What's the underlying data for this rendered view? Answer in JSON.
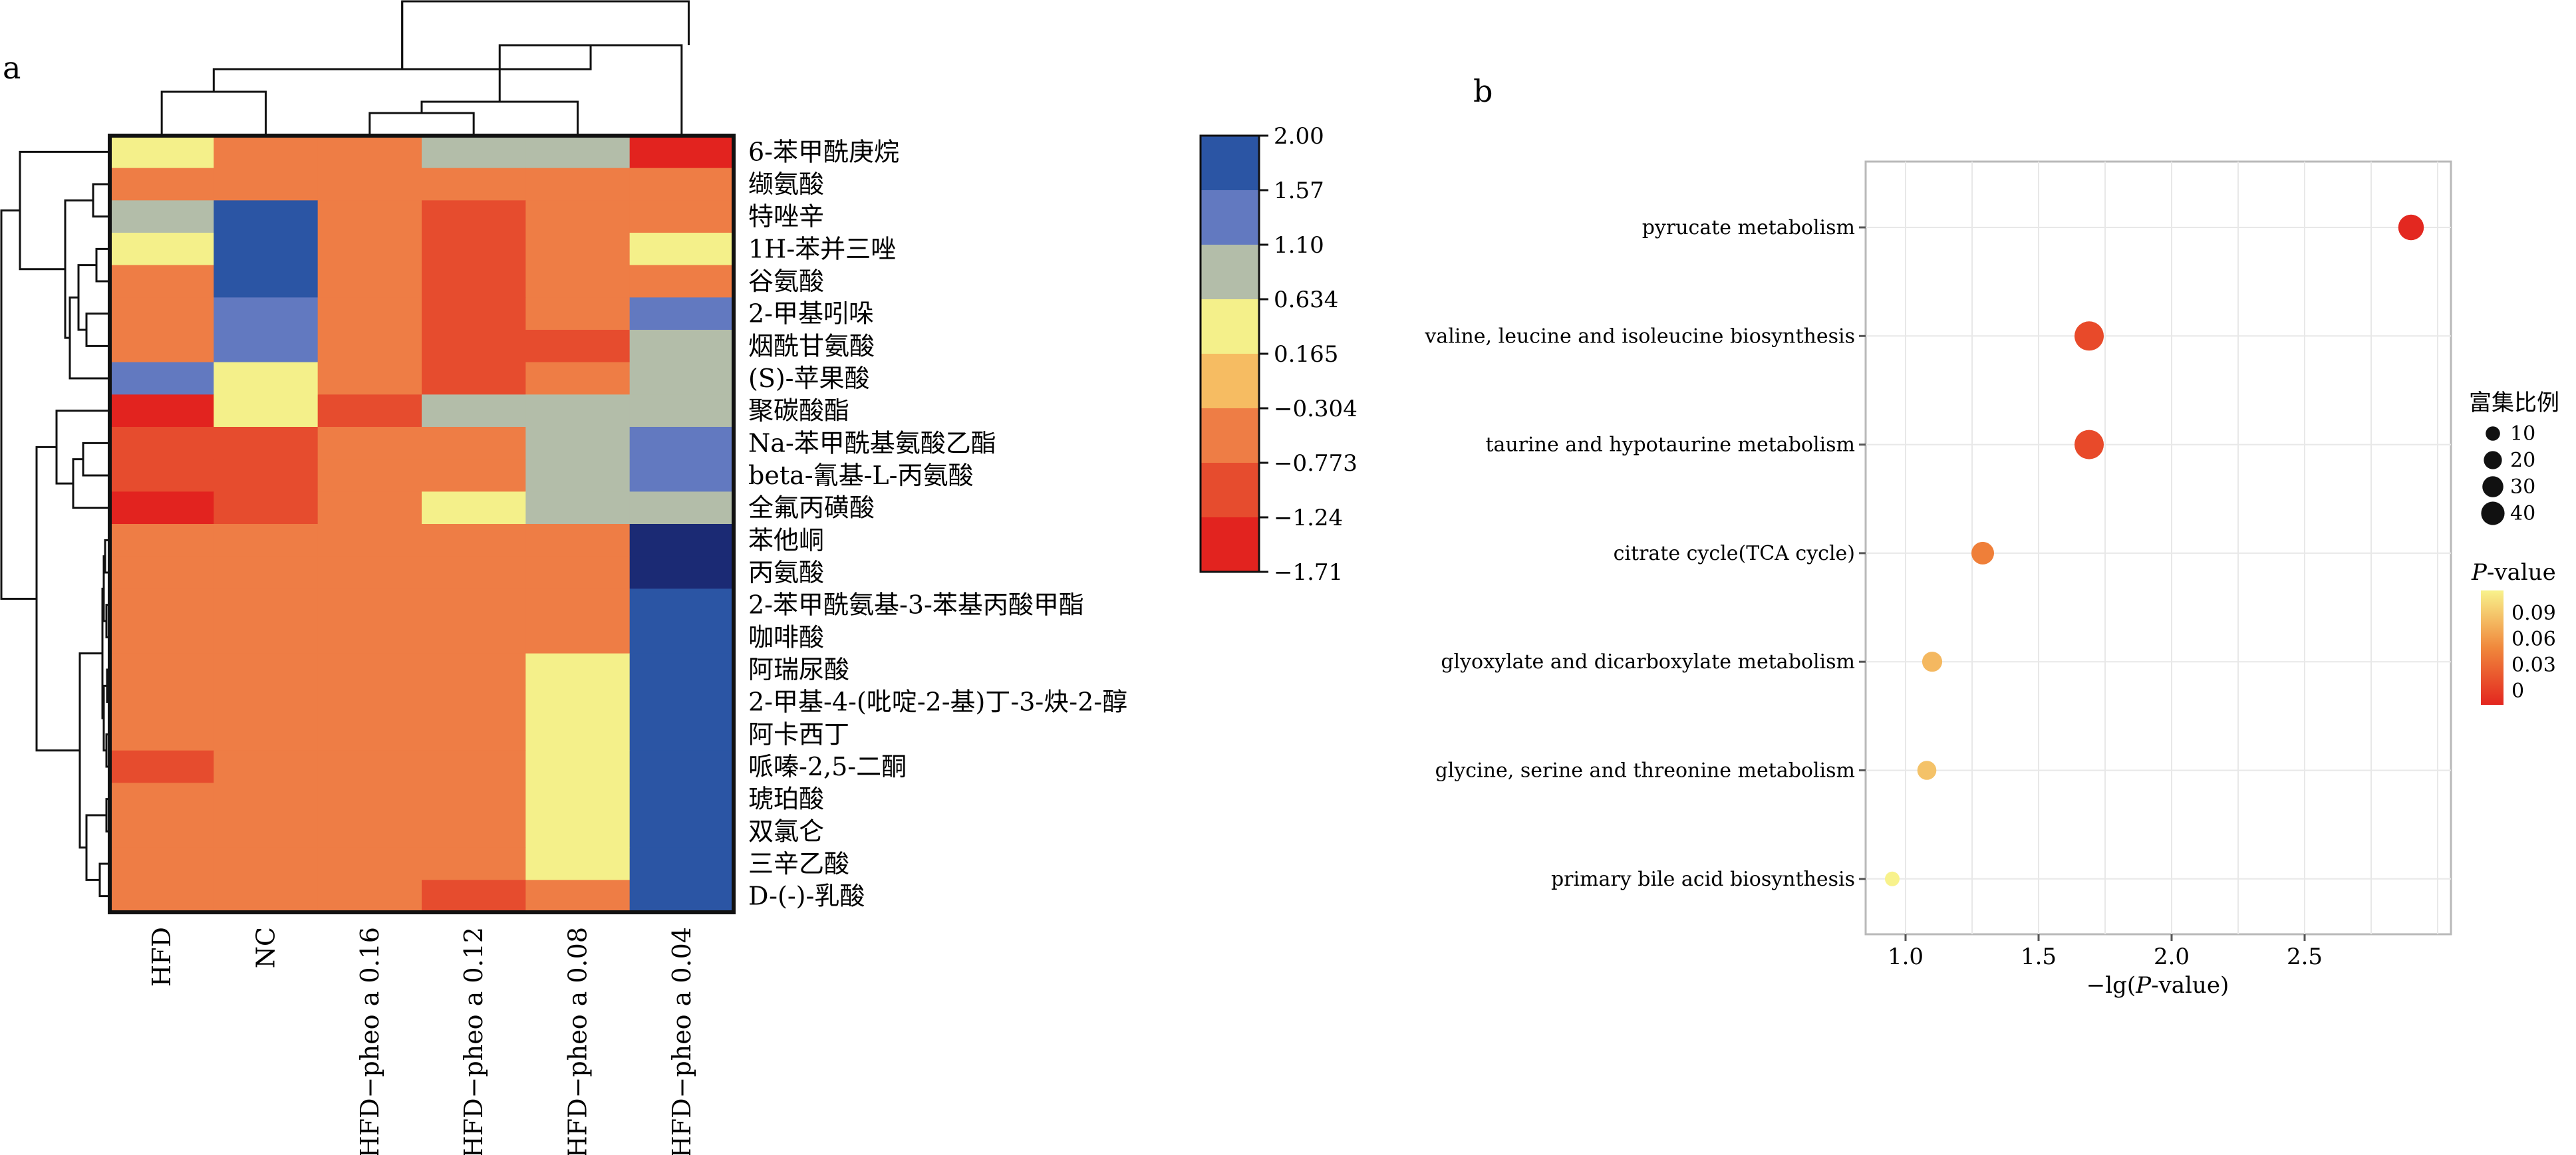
{
  "panel_labels": {
    "a": "a",
    "b": "b"
  },
  "chart_data": [
    {
      "type": "heatmap",
      "columns": [
        "HFD",
        "NC",
        "HFD−pheo a 0.16",
        "HFD−pheo a 0.12",
        "HFD−pheo a 0.08",
        "HFD−pheo a 0.04"
      ],
      "rows": [
        {
          "label": "6-苯甲酰庚烷",
          "values": [
            0.4,
            -0.75,
            -0.4,
            0.9,
            0.9,
            -1.6
          ]
        },
        {
          "label": "缬氨酸",
          "values": [
            -0.4,
            -0.75,
            -0.75,
            -0.4,
            -0.75,
            -0.75
          ]
        },
        {
          "label": "特唑辛",
          "values": [
            0.9,
            1.8,
            -0.75,
            -1.2,
            -0.75,
            -0.4
          ]
        },
        {
          "label": "1H-苯并三唑",
          "values": [
            0.4,
            1.8,
            -0.75,
            -1.2,
            -0.75,
            0.4
          ]
        },
        {
          "label": "谷氨酸",
          "values": [
            -0.4,
            1.8,
            -0.75,
            -1.2,
            -0.75,
            -0.4
          ]
        },
        {
          "label": "2-甲基吲哚",
          "values": [
            -0.4,
            1.4,
            -0.75,
            -1.2,
            -0.75,
            1.4
          ]
        },
        {
          "label": "烟酰甘氨酸",
          "values": [
            -0.4,
            1.4,
            -0.75,
            -1.2,
            -1.2,
            0.9
          ]
        },
        {
          "label": "(S)-苹果酸",
          "values": [
            1.4,
            0.4,
            -0.75,
            -1.2,
            -0.75,
            0.9
          ]
        },
        {
          "label": "聚碳酸酯",
          "values": [
            -1.6,
            0.4,
            -1.2,
            0.9,
            0.9,
            0.9
          ]
        },
        {
          "label": "Na-苯甲酰基氨酸乙酯",
          "values": [
            -1.2,
            -1.2,
            -0.75,
            -0.4,
            0.9,
            1.4
          ]
        },
        {
          "label": "beta-氰基-L-丙氨酸",
          "values": [
            -1.2,
            -1.2,
            -0.75,
            -0.4,
            0.9,
            1.4
          ]
        },
        {
          "label": "全氟丙磺酸",
          "values": [
            -1.6,
            -1.2,
            -0.4,
            0.4,
            0.9,
            0.9
          ]
        },
        {
          "label": "苯他峒",
          "values": [
            -0.75,
            -0.75,
            -0.75,
            -0.75,
            -0.75,
            2.4
          ]
        },
        {
          "label": "丙氨酸",
          "values": [
            -0.75,
            -0.75,
            -0.75,
            -0.75,
            -0.4,
            2.4
          ]
        },
        {
          "label": "2-苯甲酰氨基-3-苯基丙酸甲酯",
          "values": [
            -0.75,
            -0.75,
            -0.75,
            -0.75,
            -0.4,
            1.8
          ]
        },
        {
          "label": "咖啡酸",
          "values": [
            -0.75,
            -0.75,
            -0.75,
            -0.75,
            -0.4,
            1.8
          ]
        },
        {
          "label": "阿瑞尿酸",
          "values": [
            -0.75,
            -0.75,
            -0.75,
            -0.75,
            0.4,
            1.8
          ]
        },
        {
          "label": "2-甲基-4-(吡啶-2-基)丁-3-炔-2-醇",
          "values": [
            -0.75,
            -0.75,
            -0.75,
            -0.75,
            0.4,
            1.8
          ]
        },
        {
          "label": "阿卡西丁",
          "values": [
            -0.75,
            -0.75,
            -0.75,
            -0.75,
            0.4,
            1.8
          ]
        },
        {
          "label": "哌嗪-2,5-二酮",
          "values": [
            -1.2,
            -0.75,
            -0.75,
            -0.75,
            0.4,
            1.8
          ]
        },
        {
          "label": "琥珀酸",
          "values": [
            -0.75,
            -0.75,
            -0.75,
            -0.4,
            0.4,
            1.8
          ]
        },
        {
          "label": "双氯仑",
          "values": [
            -0.75,
            -0.75,
            -0.75,
            -0.4,
            0.4,
            1.8
          ]
        },
        {
          "label": "三辛乙酸",
          "values": [
            -0.75,
            -0.75,
            -0.75,
            -0.75,
            0.4,
            1.8
          ]
        },
        {
          "label": "D-(-)-乳酸",
          "values": [
            -0.4,
            -0.75,
            -0.75,
            -1.2,
            -0.4,
            1.8
          ]
        }
      ],
      "colorbar": {
        "ticks": [
          "2.00",
          "1.57",
          "1.10",
          "0.634",
          "0.165",
          "−0.304",
          "−0.773",
          "−1.24",
          "−1.71"
        ],
        "colors": [
          "#2b55a4",
          "#6279c0",
          "#b3bda9",
          "#f4f08a",
          "#f6bc62",
          "#ee7d45",
          "#e64c2e",
          "#e2231f"
        ],
        "extra_dark_blue": "#1b2a74"
      }
    },
    {
      "type": "scatter",
      "categories": [
        "pyrucate metabolism",
        "valine, leucine and isoleucine biosynthesis",
        "taurine and hypotaurine metabolism",
        "citrate cycle(TCA cycle)",
        "glyoxylate and dicarboxylate metabolism",
        "glycine, serine and threonine metabolism",
        "primary bile acid biosynthesis"
      ],
      "x": [
        2.9,
        1.69,
        1.69,
        1.29,
        1.1,
        1.08,
        0.95
      ],
      "size": [
        28,
        40,
        40,
        20,
        14,
        12,
        5
      ],
      "p_value": [
        0.001,
        0.02,
        0.02,
        0.05,
        0.08,
        0.085,
        0.11
      ],
      "xlabel_prefix": "−lg(",
      "xlabel_italic": "P",
      "xlabel_suffix": "-value)",
      "xlim": [
        0.85,
        3.05
      ],
      "xticks": [
        "1.0",
        "1.5",
        "2.0",
        "2.5"
      ],
      "grid": true,
      "legend_position": "right",
      "size_legend": {
        "title": "富集比例",
        "values": [
          "10",
          "20",
          "30",
          "40"
        ]
      },
      "color_legend": {
        "title_italic": "P",
        "title_suffix": "-value",
        "ticks": [
          "0.09",
          "0.06",
          "0.03",
          "0"
        ],
        "color_low": "#e3261f",
        "color_high": "#f8f28c"
      }
    }
  ]
}
